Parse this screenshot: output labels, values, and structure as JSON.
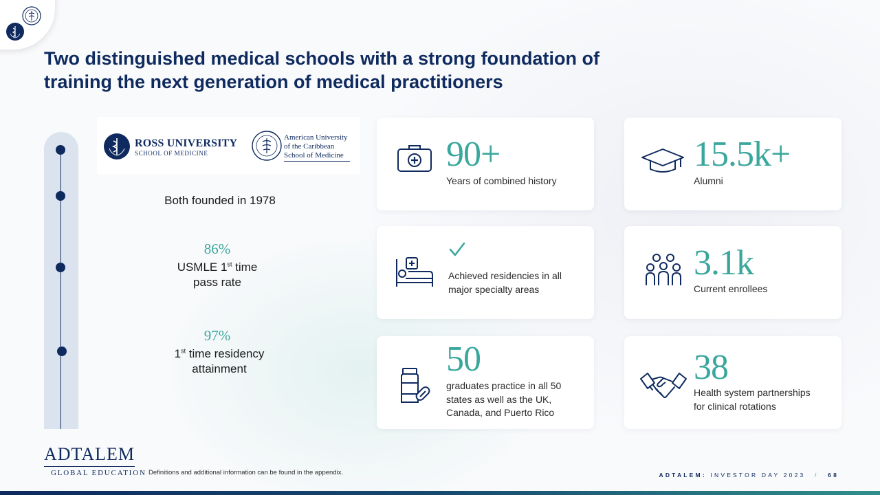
{
  "slide": {
    "title_line1": "Two distinguished medical schools with a strong foundation of",
    "title_line2": "training the next generation of medical practitioners"
  },
  "logos": {
    "ross_name": "ROSS UNIVERSITY",
    "ross_sub": "SCHOOL OF MEDICINE",
    "auc_line1": "American University",
    "auc_line2": "of the Caribbean",
    "auc_line3": "School of Medicine"
  },
  "timeline": {
    "founded": "Both founded in 1978",
    "usmle_pct": "86%",
    "usmle_label_a": "USMLE 1",
    "usmle_label_sup": "st",
    "usmle_label_b": " time",
    "usmle_label_line2": "pass rate",
    "residency_pct": "97%",
    "residency_label_sup": "st",
    "residency_label_a": " time residency",
    "residency_label_line2": "attainment"
  },
  "cards": {
    "history": {
      "value": "90+",
      "desc": "Years of combined history",
      "icon": "first-aid-kit-icon"
    },
    "alumni": {
      "value": "15.5k+",
      "desc": "Alumni",
      "icon": "graduation-cap-icon"
    },
    "residencies": {
      "desc_line1": "Achieved residencies in all",
      "desc_line2": "major specialty areas",
      "icon": "hospital-bed-icon"
    },
    "enrollees": {
      "value": "3.1k",
      "desc": "Current enrollees",
      "icon": "group-icon"
    },
    "states": {
      "value": "50",
      "desc_line1": "graduates practice in all 50",
      "desc_line2": "states as well as the UK,",
      "desc_line3": "Canada, and Puerto Rico",
      "icon": "medicine-bottle-icon"
    },
    "partnerships": {
      "value": "38",
      "desc_line1": "Health system partnerships",
      "desc_line2": "for clinical rotations",
      "icon": "handshake-icon"
    }
  },
  "footer": {
    "adtalem_name": "ADTALEM",
    "adtalem_sub": "GLOBAL EDUCATION",
    "footnote": "Definitions and additional information can be found in the appendix.",
    "brand": "ADTALEM:",
    "event": "INVESTOR DAY 2023",
    "separator": "/",
    "page": "68"
  },
  "colors": {
    "navy": "#0e2a5e",
    "teal": "#3aa79d",
    "track": "#dbe3ef"
  }
}
